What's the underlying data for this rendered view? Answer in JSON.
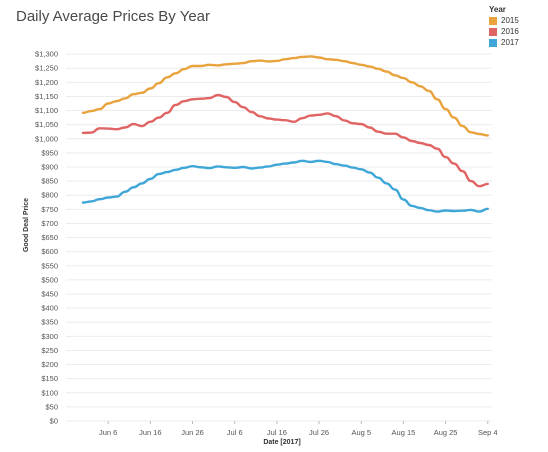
{
  "chart_data": {
    "type": "line",
    "title": "Daily Average Prices By Year",
    "xlabel": "Date [2017]",
    "ylabel": "Good Deal Price",
    "ylim": [
      0,
      1350
    ],
    "xlim": [
      "2017-05-27",
      "2017-09-05"
    ],
    "y_ticks": [
      "$0",
      "$50",
      "$100",
      "$150",
      "$200",
      "$250",
      "$300",
      "$350",
      "$400",
      "$450",
      "$500",
      "$550",
      "$600",
      "$650",
      "$700",
      "$750",
      "$800",
      "$850",
      "$900",
      "$950",
      "$1,000",
      "$1,050",
      "$1,100",
      "$1,150",
      "$1,200",
      "$1,250",
      "$1,300"
    ],
    "x_ticks": [
      "2017-06-06",
      "2017-06-16",
      "2017-06-26",
      "2017-07-06",
      "2017-07-16",
      "2017-07-26",
      "2017-08-05",
      "2017-08-15",
      "2017-08-25",
      "2017-09-04"
    ],
    "x_tick_labels": [
      "Jun 6",
      "Jun 16",
      "Jun 26",
      "Jul 6",
      "Jul 16",
      "Jul 26",
      "Aug 5",
      "Aug 15",
      "Aug 25",
      "Sep 4"
    ],
    "grid": true,
    "legend": {
      "title": "Year",
      "placement": "top-right"
    },
    "series": [
      {
        "name": "2015",
        "color": "#E8A33D",
        "points": [
          [
            "2017-05-31",
            1092
          ],
          [
            "2017-06-02",
            1098
          ],
          [
            "2017-06-04",
            1105
          ],
          [
            "2017-06-06",
            1125
          ],
          [
            "2017-06-08",
            1133
          ],
          [
            "2017-06-10",
            1143
          ],
          [
            "2017-06-12",
            1158
          ],
          [
            "2017-06-14",
            1163
          ],
          [
            "2017-06-16",
            1178
          ],
          [
            "2017-06-18",
            1197
          ],
          [
            "2017-06-20",
            1218
          ],
          [
            "2017-06-22",
            1232
          ],
          [
            "2017-06-24",
            1247
          ],
          [
            "2017-06-26",
            1258
          ],
          [
            "2017-06-28",
            1258
          ],
          [
            "2017-06-30",
            1262
          ],
          [
            "2017-07-02",
            1260
          ],
          [
            "2017-07-04",
            1264
          ],
          [
            "2017-07-06",
            1266
          ],
          [
            "2017-07-08",
            1268
          ],
          [
            "2017-07-10",
            1275
          ],
          [
            "2017-07-12",
            1277
          ],
          [
            "2017-07-14",
            1274
          ],
          [
            "2017-07-16",
            1276
          ],
          [
            "2017-07-18",
            1282
          ],
          [
            "2017-07-20",
            1286
          ],
          [
            "2017-07-22",
            1290
          ],
          [
            "2017-07-24",
            1292
          ],
          [
            "2017-07-26",
            1288
          ],
          [
            "2017-07-28",
            1282
          ],
          [
            "2017-07-30",
            1280
          ],
          [
            "2017-08-01",
            1275
          ],
          [
            "2017-08-03",
            1268
          ],
          [
            "2017-08-05",
            1262
          ],
          [
            "2017-08-07",
            1256
          ],
          [
            "2017-08-09",
            1248
          ],
          [
            "2017-08-11",
            1238
          ],
          [
            "2017-08-13",
            1225
          ],
          [
            "2017-08-15",
            1215
          ],
          [
            "2017-08-17",
            1200
          ],
          [
            "2017-08-19",
            1186
          ],
          [
            "2017-08-21",
            1170
          ],
          [
            "2017-08-23",
            1140
          ],
          [
            "2017-08-25",
            1105
          ],
          [
            "2017-08-27",
            1075
          ],
          [
            "2017-08-29",
            1045
          ],
          [
            "2017-08-31",
            1023
          ],
          [
            "2017-09-02",
            1017
          ],
          [
            "2017-09-04",
            1012
          ]
        ]
      },
      {
        "name": "2016",
        "color": "#E06464",
        "points": [
          [
            "2017-05-31",
            1021
          ],
          [
            "2017-06-02",
            1022
          ],
          [
            "2017-06-04",
            1037
          ],
          [
            "2017-06-06",
            1036
          ],
          [
            "2017-06-08",
            1034
          ],
          [
            "2017-06-10",
            1040
          ],
          [
            "2017-06-12",
            1052
          ],
          [
            "2017-06-14",
            1045
          ],
          [
            "2017-06-16",
            1060
          ],
          [
            "2017-06-18",
            1075
          ],
          [
            "2017-06-20",
            1092
          ],
          [
            "2017-06-22",
            1120
          ],
          [
            "2017-06-24",
            1133
          ],
          [
            "2017-06-26",
            1140
          ],
          [
            "2017-06-28",
            1142
          ],
          [
            "2017-06-30",
            1144
          ],
          [
            "2017-07-02",
            1155
          ],
          [
            "2017-07-04",
            1148
          ],
          [
            "2017-07-06",
            1130
          ],
          [
            "2017-07-08",
            1112
          ],
          [
            "2017-07-10",
            1095
          ],
          [
            "2017-07-12",
            1080
          ],
          [
            "2017-07-14",
            1072
          ],
          [
            "2017-07-16",
            1068
          ],
          [
            "2017-07-18",
            1066
          ],
          [
            "2017-07-20",
            1060
          ],
          [
            "2017-07-22",
            1073
          ],
          [
            "2017-07-24",
            1082
          ],
          [
            "2017-07-26",
            1085
          ],
          [
            "2017-07-28",
            1090
          ],
          [
            "2017-07-30",
            1080
          ],
          [
            "2017-08-01",
            1065
          ],
          [
            "2017-08-03",
            1055
          ],
          [
            "2017-08-05",
            1052
          ],
          [
            "2017-08-07",
            1040
          ],
          [
            "2017-08-09",
            1025
          ],
          [
            "2017-08-11",
            1018
          ],
          [
            "2017-08-13",
            1018
          ],
          [
            "2017-08-15",
            1005
          ],
          [
            "2017-08-17",
            992
          ],
          [
            "2017-08-19",
            985
          ],
          [
            "2017-08-21",
            978
          ],
          [
            "2017-08-23",
            965
          ],
          [
            "2017-08-25",
            935
          ],
          [
            "2017-08-27",
            912
          ],
          [
            "2017-08-29",
            885
          ],
          [
            "2017-08-31",
            850
          ],
          [
            "2017-09-02",
            832
          ],
          [
            "2017-09-04",
            840
          ]
        ]
      },
      {
        "name": "2017",
        "color": "#3FA6D8",
        "points": [
          [
            "2017-05-31",
            774
          ],
          [
            "2017-06-02",
            778
          ],
          [
            "2017-06-04",
            786
          ],
          [
            "2017-06-06",
            792
          ],
          [
            "2017-06-08",
            795
          ],
          [
            "2017-06-10",
            812
          ],
          [
            "2017-06-12",
            828
          ],
          [
            "2017-06-14",
            842
          ],
          [
            "2017-06-16",
            858
          ],
          [
            "2017-06-18",
            875
          ],
          [
            "2017-06-20",
            882
          ],
          [
            "2017-06-22",
            890
          ],
          [
            "2017-06-24",
            897
          ],
          [
            "2017-06-26",
            903
          ],
          [
            "2017-06-28",
            899
          ],
          [
            "2017-06-30",
            896
          ],
          [
            "2017-07-02",
            902
          ],
          [
            "2017-07-04",
            899
          ],
          [
            "2017-07-06",
            897
          ],
          [
            "2017-07-08",
            900
          ],
          [
            "2017-07-10",
            895
          ],
          [
            "2017-07-12",
            898
          ],
          [
            "2017-07-14",
            902
          ],
          [
            "2017-07-16",
            908
          ],
          [
            "2017-07-18",
            912
          ],
          [
            "2017-07-20",
            916
          ],
          [
            "2017-07-22",
            922
          ],
          [
            "2017-07-24",
            918
          ],
          [
            "2017-07-26",
            922
          ],
          [
            "2017-07-28",
            918
          ],
          [
            "2017-07-30",
            910
          ],
          [
            "2017-08-01",
            905
          ],
          [
            "2017-08-03",
            898
          ],
          [
            "2017-08-05",
            892
          ],
          [
            "2017-08-07",
            880
          ],
          [
            "2017-08-09",
            862
          ],
          [
            "2017-08-11",
            842
          ],
          [
            "2017-08-13",
            820
          ],
          [
            "2017-08-15",
            785
          ],
          [
            "2017-08-17",
            762
          ],
          [
            "2017-08-19",
            755
          ],
          [
            "2017-08-21",
            747
          ],
          [
            "2017-08-23",
            742
          ],
          [
            "2017-08-25",
            746
          ],
          [
            "2017-08-27",
            744
          ],
          [
            "2017-08-29",
            745
          ],
          [
            "2017-08-31",
            748
          ],
          [
            "2017-09-02",
            742
          ],
          [
            "2017-09-04",
            752
          ]
        ]
      }
    ]
  }
}
